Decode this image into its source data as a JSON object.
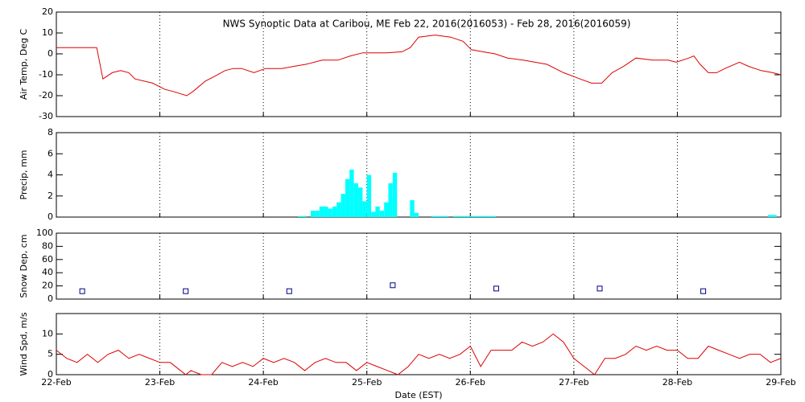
{
  "chart_data": [
    {
      "type": "line",
      "title": "NWS Synoptic Data at Caribou, ME   Feb 22, 2016(2016053) - Feb 28, 2016(2016059)",
      "ylabel": "Air Temp, Deg C",
      "color": "#dd0000",
      "x": [
        0,
        0.39,
        0.45,
        0.54,
        0.62,
        0.7,
        0.76,
        0.93,
        1.05,
        1.13,
        1.26,
        1.32,
        1.44,
        1.52,
        1.63,
        1.71,
        1.79,
        1.91,
        2.02,
        2.18,
        2.29,
        2.41,
        2.57,
        2.72,
        2.84,
        2.96,
        3.19,
        3.34,
        3.42,
        3.5,
        3.66,
        3.81,
        3.93,
        4.01,
        4.12,
        4.24,
        4.36,
        4.51,
        4.74,
        4.9,
        5.06,
        5.17,
        5.27,
        5.37,
        5.48,
        5.6,
        5.76,
        5.91,
        5.99,
        6.11,
        6.16,
        6.22,
        6.3,
        6.38,
        6.46,
        6.6,
        6.69,
        6.81,
        6.92,
        7
      ],
      "values": [
        3,
        3,
        -12,
        -9,
        -8,
        -9,
        -12,
        -14,
        -17,
        -18,
        -20,
        -18,
        -13,
        -11,
        -8,
        -7,
        -7,
        -9,
        -7,
        -7,
        -6,
        -5,
        -3,
        -3,
        -1,
        0.5,
        0.5,
        1,
        3,
        8,
        9,
        8,
        6,
        2,
        1,
        0,
        -2,
        -3,
        -5,
        -9,
        -12,
        -14,
        -14,
        -9,
        -6,
        -2,
        -3,
        -3,
        -4,
        -2,
        -1,
        -5,
        -9,
        -9,
        -7,
        -4,
        -6,
        -8,
        -9,
        -10
      ],
      "xlim": [
        0,
        7
      ],
      "xticks": [
        0,
        1,
        2,
        3,
        4,
        5,
        6,
        7
      ],
      "ylim": [
        -30,
        20
      ],
      "yticks": [
        -30,
        -20,
        -10,
        0,
        10,
        20
      ],
      "grid": true
    },
    {
      "type": "bar",
      "ylabel": "Precip, mm",
      "color": "#00ffff",
      "x": [
        2.333,
        2.375,
        2.458,
        2.5,
        2.542,
        2.583,
        2.625,
        2.667,
        2.708,
        2.75,
        2.792,
        2.833,
        2.875,
        2.917,
        2.958,
        3.0,
        3.042,
        3.083,
        3.125,
        3.167,
        3.208,
        3.25,
        3.417,
        3.458,
        3.625,
        3.667,
        3.708,
        3.75,
        3.833,
        3.875,
        3.917,
        3.958,
        4.0,
        4.042,
        4.083,
        4.125,
        4.167,
        4.208,
        6.875,
        6.917
      ],
      "values": [
        0.1,
        0.1,
        0.6,
        0.6,
        1.0,
        1.0,
        0.8,
        1.0,
        1.4,
        2.2,
        3.6,
        4.5,
        3.2,
        2.8,
        1.5,
        4.0,
        0.5,
        1.0,
        0.6,
        1.4,
        3.2,
        4.2,
        1.6,
        0.4,
        0.1,
        0.1,
        0.1,
        0.1,
        0.1,
        0.1,
        0.1,
        0.1,
        0.1,
        0.1,
        0.1,
        0.1,
        0.1,
        0.1,
        0.2,
        0.2
      ],
      "xlim": [
        0,
        7
      ],
      "xticks": [
        0,
        1,
        2,
        3,
        4,
        5,
        6,
        7
      ],
      "ylim": [
        0,
        8
      ],
      "yticks": [
        0,
        2,
        4,
        6,
        8
      ],
      "grid": true
    },
    {
      "type": "scatter",
      "ylabel": "Snow Dep, cm",
      "color": "#000080",
      "x": [
        0.25,
        1.25,
        2.25,
        3.25,
        4.25,
        5.25,
        6.25
      ],
      "values": [
        12,
        12,
        12,
        21,
        16,
        16,
        12
      ],
      "xlim": [
        0,
        7
      ],
      "xticks": [
        0,
        1,
        2,
        3,
        4,
        5,
        6,
        7
      ],
      "ylim": [
        0,
        100
      ],
      "yticks": [
        0,
        20,
        40,
        60,
        80,
        100
      ],
      "grid": true
    },
    {
      "type": "line",
      "ylabel": "Wind Spd, m/s",
      "xlabel": "Date (EST)",
      "color": "#dd0000",
      "x": [
        0,
        0.1,
        0.2,
        0.3,
        0.4,
        0.5,
        0.6,
        0.7,
        0.8,
        0.9,
        1.0,
        1.1,
        1.2,
        1.25,
        1.3,
        1.4,
        1.5,
        1.6,
        1.7,
        1.8,
        1.9,
        2.0,
        2.1,
        2.2,
        2.3,
        2.4,
        2.5,
        2.6,
        2.7,
        2.8,
        2.9,
        3.0,
        3.1,
        3.2,
        3.3,
        3.4,
        3.5,
        3.6,
        3.7,
        3.8,
        3.9,
        4.0,
        4.1,
        4.2,
        4.3,
        4.4,
        4.5,
        4.6,
        4.7,
        4.8,
        4.9,
        5.0,
        5.1,
        5.2,
        5.3,
        5.4,
        5.5,
        5.6,
        5.7,
        5.8,
        5.9,
        6.0,
        6.1,
        6.2,
        6.3,
        6.4,
        6.5,
        6.6,
        6.7,
        6.8,
        6.9,
        7.0
      ],
      "values": [
        6,
        4,
        3,
        5,
        3,
        5,
        6,
        4,
        5,
        4,
        3,
        3,
        1,
        0,
        1,
        0,
        0,
        3,
        2,
        3,
        2,
        4,
        3,
        4,
        3,
        1,
        3,
        4,
        3,
        3,
        1,
        3,
        2,
        1,
        0,
        2,
        5,
        4,
        5,
        4,
        5,
        7,
        2,
        6,
        6,
        6,
        8,
        7,
        8,
        10,
        8,
        4,
        2,
        0,
        4,
        4,
        5,
        7,
        6,
        7,
        6,
        6,
        4,
        4,
        7,
        6,
        5,
        4,
        5,
        5,
        3,
        4
      ],
      "xlim": [
        0,
        7
      ],
      "xticks": [
        {
          "value": 0,
          "label": "22-Feb"
        },
        {
          "value": 1,
          "label": "23-Feb"
        },
        {
          "value": 2,
          "label": "24-Feb"
        },
        {
          "value": 3,
          "label": "25-Feb"
        },
        {
          "value": 4,
          "label": "26-Feb"
        },
        {
          "value": 5,
          "label": "27-Feb"
        },
        {
          "value": 6,
          "label": "28-Feb"
        },
        {
          "value": 7,
          "label": "29-Feb"
        }
      ],
      "ylim": [
        0,
        15
      ],
      "yticks": [
        0,
        5,
        10
      ],
      "grid": true
    }
  ]
}
